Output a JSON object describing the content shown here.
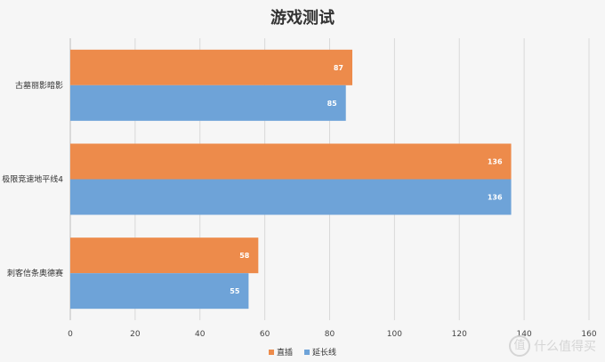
{
  "chart_data": {
    "type": "bar",
    "orientation": "horizontal",
    "title": "游戏测试",
    "categories": [
      "古墓丽影暗影",
      "极限竞速地平线4",
      "刺客信条奥德赛"
    ],
    "series": [
      {
        "name": "直插",
        "values": [
          87,
          136,
          58
        ],
        "color": "#ed8b4b"
      },
      {
        "name": "延长线",
        "values": [
          85,
          136,
          55
        ],
        "color": "#6ea3d8"
      }
    ],
    "xlim": [
      0,
      160
    ],
    "xticks": [
      "0",
      "20",
      "40",
      "60",
      "80",
      "100",
      "120",
      "140",
      "160"
    ],
    "grid": true,
    "legend_position": "bottom"
  },
  "watermark": {
    "badge": "值",
    "text": "什么值得买"
  }
}
